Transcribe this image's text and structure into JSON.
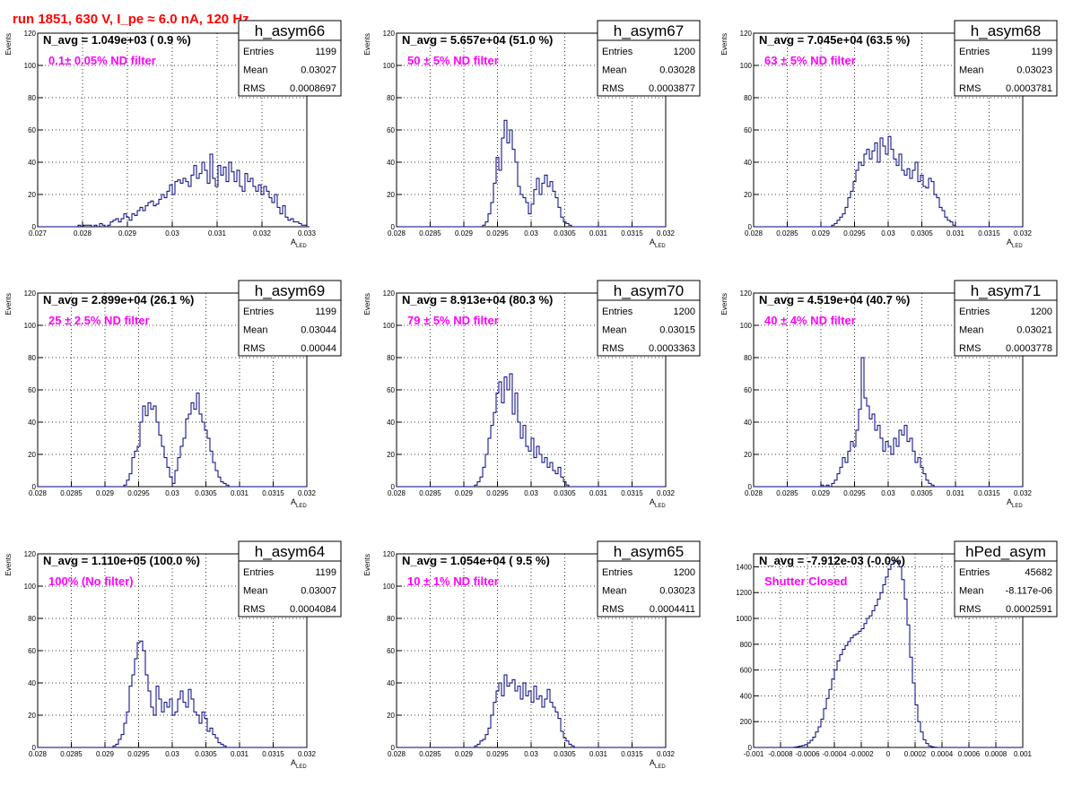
{
  "page_title": "run 1851,   630 V, I_pe ≈ 6.0 nA, 120 Hz",
  "colors": {
    "title": "#ff0000",
    "histogram": "#000080",
    "annotation": "#ff00ff",
    "grid": "#000000",
    "background": "#ffffff"
  },
  "ylabel": "Events",
  "stats_labels": {
    "entries": "Entries",
    "mean": "Mean",
    "rms": "RMS"
  },
  "chart_data": [
    {
      "type": "histogram",
      "name": "h_asym66",
      "stats": {
        "entries": "1199",
        "mean": "0.03027",
        "rms": "0.0008697"
      },
      "navg": "N_avg = 1.049e+03 ( 0.9 %)",
      "annotation": "0.1± 0.05% ND filter",
      "xlabel": "A",
      "xlabel_sub": "LED",
      "ylabel": "Events",
      "xlim": [
        0.027,
        0.033
      ],
      "ylim": [
        0,
        120
      ],
      "grid": true,
      "xticks": [
        "0.027",
        "0.028",
        "0.029",
        "0.03",
        "0.031",
        "0.032",
        "0.033"
      ],
      "yticks": [
        "0",
        "20",
        "40",
        "60",
        "80",
        "100",
        "120"
      ],
      "bin_start": 0.027,
      "bin_width": 6e-05,
      "counts": [
        0,
        0,
        0,
        0,
        0,
        0,
        0,
        0,
        0,
        0,
        0,
        0,
        0,
        0,
        0,
        1,
        0,
        1,
        1,
        1,
        0,
        1,
        0,
        2,
        1,
        0,
        1,
        3,
        4,
        5,
        3,
        5,
        8,
        6,
        4,
        8,
        7,
        10,
        12,
        10,
        13,
        15,
        16,
        13,
        14,
        17,
        20,
        18,
        22,
        26,
        20,
        28,
        29,
        27,
        30,
        28,
        25,
        32,
        38,
        30,
        33,
        40,
        35,
        27,
        45,
        30,
        25,
        38,
        32,
        37,
        28,
        40,
        34,
        28,
        35,
        25,
        22,
        33,
        28,
        30,
        25,
        22,
        26,
        20,
        25,
        22,
        18,
        15,
        20,
        12,
        8,
        13,
        6,
        4,
        5,
        3,
        3,
        2,
        1,
        1,
        0
      ]
    },
    {
      "type": "histogram",
      "name": "h_asym67",
      "stats": {
        "entries": "1200",
        "mean": "0.03028",
        "rms": "0.0003877"
      },
      "navg": "N_avg = 5.657e+04 (51.0 %)",
      "annotation": "50 ± 5% ND filter",
      "xlabel": "A",
      "xlabel_sub": "LED",
      "ylabel": "Events",
      "xlim": [
        0.028,
        0.032
      ],
      "ylim": [
        0,
        120
      ],
      "grid": true,
      "xticks": [
        "0.028",
        "0.0285",
        "0.029",
        "0.0295",
        "0.03",
        "0.0305",
        "0.031",
        "0.0315",
        "0.032"
      ],
      "yticks": [
        "0",
        "20",
        "40",
        "60",
        "80",
        "100",
        "120"
      ],
      "bin_start": 0.028,
      "bin_width": 4e-05,
      "counts": [
        0,
        0,
        0,
        0,
        0,
        0,
        0,
        0,
        0,
        0,
        0,
        0,
        0,
        0,
        0,
        0,
        0,
        0,
        0,
        0,
        0,
        0,
        0,
        0,
        0,
        0,
        0,
        0,
        0,
        0,
        0,
        0,
        1,
        3,
        8,
        15,
        27,
        43,
        35,
        55,
        66,
        52,
        60,
        48,
        40,
        25,
        20,
        18,
        15,
        8,
        14,
        23,
        30,
        20,
        27,
        32,
        25,
        28,
        22,
        18,
        12,
        6,
        3,
        2,
        1,
        0,
        0,
        0,
        0,
        0,
        0,
        0,
        0,
        0,
        0,
        0,
        0,
        0,
        0,
        0,
        0,
        0,
        0,
        0,
        0,
        0,
        0,
        0,
        0,
        0,
        0,
        0,
        0,
        0,
        0,
        0,
        0,
        0,
        0,
        0
      ]
    },
    {
      "type": "histogram",
      "name": "h_asym68",
      "stats": {
        "entries": "1199",
        "mean": "0.03023",
        "rms": "0.0003781"
      },
      "navg": "N_avg = 7.045e+04 (63.5 %)",
      "annotation": "63 ± 5% ND filter",
      "xlabel": "A",
      "xlabel_sub": "LED",
      "ylabel": "Events",
      "xlim": [
        0.028,
        0.032
      ],
      "ylim": [
        0,
        120
      ],
      "grid": true,
      "xticks": [
        "0.028",
        "0.0285",
        "0.029",
        "0.0295",
        "0.03",
        "0.0305",
        "0.031",
        "0.0315",
        "0.032"
      ],
      "yticks": [
        "0",
        "20",
        "40",
        "60",
        "80",
        "100",
        "120"
      ],
      "bin_start": 0.028,
      "bin_width": 4e-05,
      "counts": [
        0,
        0,
        0,
        0,
        0,
        0,
        0,
        0,
        0,
        0,
        0,
        0,
        0,
        0,
        0,
        0,
        0,
        0,
        0,
        0,
        0,
        0,
        0,
        0,
        0,
        0,
        0,
        0,
        0,
        1,
        2,
        4,
        6,
        8,
        12,
        18,
        22,
        28,
        35,
        40,
        38,
        45,
        48,
        42,
        47,
        52,
        40,
        55,
        50,
        45,
        56,
        48,
        42,
        38,
        45,
        35,
        32,
        36,
        30,
        35,
        40,
        28,
        32,
        25,
        24,
        30,
        28,
        20,
        18,
        12,
        10,
        6,
        4,
        3,
        1,
        0,
        0,
        0,
        0,
        0,
        0,
        0,
        0,
        0,
        0,
        0,
        0,
        0,
        0,
        0,
        0,
        0,
        0,
        0,
        0,
        0,
        0,
        0,
        0,
        0
      ]
    },
    {
      "type": "histogram",
      "name": "h_asym69",
      "stats": {
        "entries": "1199",
        "mean": "0.03044",
        "rms": "0.00044"
      },
      "navg": "N_avg = 2.899e+04 (26.1 %)",
      "annotation": "25 ± 2.5% ND filter",
      "xlabel": "A",
      "xlabel_sub": "LED",
      "ylabel": "Events",
      "xlim": [
        0.028,
        0.032
      ],
      "ylim": [
        0,
        120
      ],
      "grid": true,
      "xticks": [
        "0.028",
        "0.0285",
        "0.029",
        "0.0295",
        "0.03",
        "0.0305",
        "0.031",
        "0.0315",
        "0.032"
      ],
      "yticks": [
        "0",
        "20",
        "40",
        "60",
        "80",
        "100",
        "120"
      ],
      "bin_start": 0.028,
      "bin_width": 4e-05,
      "counts": [
        0,
        0,
        0,
        0,
        0,
        0,
        0,
        0,
        0,
        0,
        0,
        0,
        0,
        0,
        0,
        0,
        0,
        0,
        0,
        0,
        0,
        0,
        0,
        0,
        0,
        0,
        0,
        0,
        0,
        0,
        0,
        0,
        1,
        4,
        8,
        18,
        22,
        25,
        40,
        50,
        44,
        52,
        48,
        50,
        40,
        32,
        25,
        18,
        12,
        6,
        2,
        10,
        18,
        25,
        30,
        42,
        45,
        52,
        48,
        58,
        45,
        40,
        35,
        30,
        22,
        15,
        10,
        6,
        3,
        2,
        1,
        0,
        0,
        0,
        0,
        0,
        0,
        0,
        0,
        0,
        0,
        0,
        0,
        0,
        0,
        0,
        0,
        0,
        0,
        0,
        0,
        0,
        0,
        0,
        0,
        0,
        0,
        0,
        0,
        0
      ]
    },
    {
      "type": "histogram",
      "name": "h_asym70",
      "stats": {
        "entries": "1200",
        "mean": "0.03015",
        "rms": "0.0003363"
      },
      "navg": "N_avg = 8.913e+04 (80.3 %)",
      "annotation": "79 ± 5% ND filter",
      "xlabel": "A",
      "xlabel_sub": "LED",
      "ylabel": "Events",
      "xlim": [
        0.028,
        0.032
      ],
      "ylim": [
        0,
        120
      ],
      "grid": true,
      "xticks": [
        "0.028",
        "0.0285",
        "0.029",
        "0.0295",
        "0.03",
        "0.0305",
        "0.031",
        "0.0315",
        "0.032"
      ],
      "yticks": [
        "0",
        "20",
        "40",
        "60",
        "80",
        "100",
        "120"
      ],
      "bin_start": 0.028,
      "bin_width": 4e-05,
      "counts": [
        0,
        0,
        0,
        0,
        0,
        0,
        0,
        0,
        0,
        0,
        0,
        0,
        0,
        0,
        0,
        0,
        0,
        0,
        0,
        0,
        0,
        0,
        0,
        0,
        0,
        0,
        0,
        0,
        0,
        1,
        3,
        6,
        12,
        20,
        30,
        38,
        46,
        58,
        65,
        52,
        68,
        60,
        70,
        45,
        58,
        40,
        30,
        38,
        25,
        22,
        30,
        18,
        25,
        20,
        15,
        18,
        12,
        15,
        10,
        8,
        12,
        6,
        3,
        1,
        0,
        0,
        0,
        0,
        0,
        0,
        0,
        0,
        0,
        0,
        0,
        0,
        0,
        0,
        0,
        0,
        0,
        0,
        0,
        0,
        0,
        0,
        0,
        0,
        0,
        0,
        0,
        0,
        0,
        0,
        0,
        0,
        0,
        0,
        0,
        0
      ]
    },
    {
      "type": "histogram",
      "name": "h_asym71",
      "stats": {
        "entries": "1200",
        "mean": "0.03021",
        "rms": "0.0003778"
      },
      "navg": "N_avg = 4.519e+04 (40.7 %)",
      "annotation": "40 ± 4% ND filter",
      "xlabel": "A",
      "xlabel_sub": "LED",
      "ylabel": "Events",
      "xlim": [
        0.028,
        0.032
      ],
      "ylim": [
        0,
        120
      ],
      "grid": true,
      "xticks": [
        "0.028",
        "0.0285",
        "0.029",
        "0.0295",
        "0.03",
        "0.0305",
        "0.031",
        "0.0315",
        "0.032"
      ],
      "yticks": [
        "0",
        "20",
        "40",
        "60",
        "80",
        "100",
        "120"
      ],
      "bin_start": 0.028,
      "bin_width": 4e-05,
      "counts": [
        0,
        0,
        0,
        0,
        0,
        0,
        0,
        0,
        0,
        0,
        0,
        0,
        0,
        0,
        0,
        0,
        0,
        0,
        0,
        0,
        0,
        0,
        0,
        0,
        0,
        1,
        0,
        1,
        0,
        2,
        4,
        8,
        12,
        18,
        15,
        22,
        28,
        25,
        35,
        48,
        80,
        55,
        50,
        42,
        45,
        35,
        38,
        30,
        22,
        28,
        25,
        20,
        30,
        25,
        35,
        32,
        38,
        28,
        30,
        22,
        15,
        18,
        12,
        8,
        4,
        2,
        1,
        0,
        0,
        0,
        0,
        0,
        0,
        0,
        0,
        0,
        0,
        0,
        0,
        0,
        0,
        0,
        0,
        0,
        0,
        0,
        0,
        0,
        0,
        0,
        0,
        0,
        0,
        0,
        0,
        0,
        0,
        0,
        0,
        0
      ]
    },
    {
      "type": "histogram",
      "name": "h_asym64",
      "stats": {
        "entries": "1199",
        "mean": "0.03007",
        "rms": "0.0004084"
      },
      "navg": "N_avg = 1.110e+05 (100.0 %)",
      "annotation": "100% (No filter)",
      "xlabel": "A",
      "xlabel_sub": "LED",
      "ylabel": "Events",
      "xlim": [
        0.028,
        0.032
      ],
      "ylim": [
        0,
        120
      ],
      "grid": true,
      "xticks": [
        "0.028",
        "0.0285",
        "0.029",
        "0.0295",
        "0.03",
        "0.0305",
        "0.031",
        "0.0315",
        "0.032"
      ],
      "yticks": [
        "0",
        "20",
        "40",
        "60",
        "80",
        "100",
        "120"
      ],
      "bin_start": 0.028,
      "bin_width": 4e-05,
      "counts": [
        0,
        0,
        0,
        0,
        0,
        0,
        0,
        0,
        0,
        0,
        0,
        0,
        0,
        0,
        0,
        0,
        0,
        0,
        0,
        0,
        0,
        0,
        0,
        0,
        0,
        0,
        0,
        0,
        1,
        2,
        5,
        8,
        15,
        22,
        38,
        45,
        55,
        65,
        66,
        60,
        45,
        35,
        25,
        20,
        38,
        30,
        22,
        28,
        25,
        30,
        20,
        22,
        30,
        35,
        28,
        25,
        36,
        30,
        22,
        20,
        15,
        22,
        18,
        10,
        12,
        8,
        6,
        3,
        2,
        1,
        0,
        0,
        0,
        0,
        0,
        0,
        0,
        0,
        0,
        0,
        0,
        0,
        0,
        0,
        0,
        0,
        0,
        0,
        0,
        0,
        0,
        0,
        0,
        0,
        0,
        0,
        0,
        0,
        0,
        0
      ]
    },
    {
      "type": "histogram",
      "name": "h_asym65",
      "stats": {
        "entries": "1200",
        "mean": "0.03023",
        "rms": "0.0004411"
      },
      "navg": "N_avg = 1.054e+04 ( 9.5 %)",
      "annotation": "10 ± 1% ND filter",
      "xlabel": "A",
      "xlabel_sub": "LED",
      "ylabel": "Events",
      "xlim": [
        0.028,
        0.032
      ],
      "ylim": [
        0,
        120
      ],
      "grid": true,
      "xticks": [
        "0.028",
        "0.0285",
        "0.029",
        "0.0295",
        "0.03",
        "0.0305",
        "0.031",
        "0.0315",
        "0.032"
      ],
      "yticks": [
        "0",
        "20",
        "40",
        "60",
        "80",
        "100",
        "120"
      ],
      "bin_start": 0.028,
      "bin_width": 4e-05,
      "counts": [
        0,
        0,
        0,
        0,
        0,
        0,
        0,
        0,
        0,
        0,
        0,
        0,
        0,
        0,
        0,
        0,
        0,
        0,
        0,
        0,
        0,
        0,
        0,
        0,
        0,
        0,
        0,
        0,
        0,
        1,
        2,
        4,
        5,
        8,
        12,
        20,
        28,
        35,
        40,
        32,
        45,
        38,
        40,
        42,
        35,
        38,
        30,
        40,
        32,
        35,
        28,
        38,
        30,
        32,
        25,
        30,
        36,
        28,
        25,
        22,
        18,
        10,
        6,
        4,
        2,
        1,
        0,
        0,
        0,
        0,
        0,
        0,
        0,
        0,
        0,
        0,
        0,
        0,
        0,
        0,
        0,
        0,
        0,
        0,
        0,
        0,
        0,
        0,
        0,
        0,
        0,
        0,
        0,
        0,
        0,
        0,
        0,
        0,
        0,
        0
      ]
    },
    {
      "type": "histogram",
      "name": "hPed_asym",
      "stats": {
        "entries": "45682",
        "mean": "-8.117e-06",
        "rms": "0.0002591"
      },
      "navg": "N_avg = -7.912e-03 (-0.0%)",
      "annotation": "Shutter Closed",
      "xlabel": "",
      "xlabel_sub": "",
      "ylabel": "",
      "xlim": [
        -0.001,
        0.001
      ],
      "ylim": [
        0,
        1500
      ],
      "grid": true,
      "xticks": [
        "-0.001",
        "-0.0008",
        "-0.0006",
        "-0.0004",
        "-0.0002",
        "0",
        "0.0002",
        "0.0004",
        "0.0006",
        "0.0008",
        "0.001"
      ],
      "yticks": [
        "0",
        "200",
        "400",
        "600",
        "800",
        "1000",
        "1200",
        "1400"
      ],
      "bin_start": -0.001,
      "bin_width": 2e-05,
      "counts": [
        0,
        0,
        0,
        0,
        0,
        0,
        0,
        0,
        0,
        0,
        0,
        0,
        0,
        0,
        0,
        3,
        6,
        10,
        15,
        22,
        35,
        55,
        80,
        120,
        160,
        220,
        300,
        380,
        450,
        530,
        600,
        670,
        720,
        760,
        790,
        820,
        850,
        870,
        880,
        900,
        920,
        960,
        1000,
        1020,
        1060,
        1100,
        1150,
        1200,
        1260,
        1320,
        1380,
        1420,
        1450,
        1440,
        1400,
        1300,
        1150,
        950,
        700,
        500,
        330,
        200,
        120,
        60,
        30,
        12,
        5,
        2,
        0,
        0,
        0,
        0,
        0,
        0,
        0,
        0,
        0,
        0,
        0,
        0,
        0,
        0,
        0,
        0,
        0,
        0,
        0,
        0,
        0,
        0,
        0,
        0,
        0,
        0,
        0,
        0,
        0,
        0,
        0,
        0
      ]
    }
  ]
}
